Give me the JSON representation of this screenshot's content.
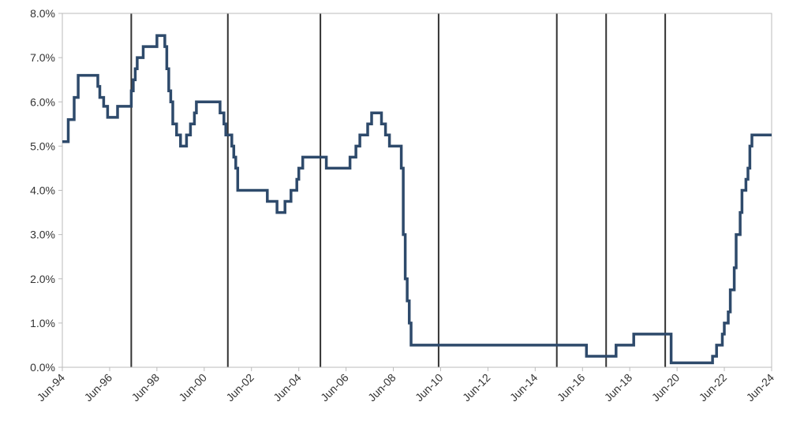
{
  "chart_data": {
    "type": "line",
    "title": "",
    "xlabel": "",
    "ylabel": "",
    "x_range": [
      "1994-06-01",
      "2024-06-01"
    ],
    "ylim": [
      0,
      8
    ],
    "y_ticks": [
      {
        "value": 0,
        "label": "0.0%"
      },
      {
        "value": 1,
        "label": "1.0%"
      },
      {
        "value": 2,
        "label": "2.0%"
      },
      {
        "value": 3,
        "label": "3.0%"
      },
      {
        "value": 4,
        "label": "4.0%"
      },
      {
        "value": 5,
        "label": "5.0%"
      },
      {
        "value": 6,
        "label": "6.0%"
      },
      {
        "value": 7,
        "label": "7.0%"
      },
      {
        "value": 8,
        "label": "8.0%"
      }
    ],
    "x_ticks": [
      {
        "date": "1994-06-01",
        "label": "Jun-94"
      },
      {
        "date": "1996-06-01",
        "label": "Jun-96"
      },
      {
        "date": "1998-06-01",
        "label": "Jun-98"
      },
      {
        "date": "2000-06-01",
        "label": "Jun-00"
      },
      {
        "date": "2002-06-01",
        "label": "Jun-02"
      },
      {
        "date": "2004-06-01",
        "label": "Jun-04"
      },
      {
        "date": "2006-06-01",
        "label": "Jun-06"
      },
      {
        "date": "2008-06-01",
        "label": "Jun-08"
      },
      {
        "date": "2010-06-01",
        "label": "Jun-10"
      },
      {
        "date": "2012-06-01",
        "label": "Jun-12"
      },
      {
        "date": "2014-06-01",
        "label": "Jun-14"
      },
      {
        "date": "2016-06-01",
        "label": "Jun-16"
      },
      {
        "date": "2018-06-01",
        "label": "Jun-18"
      },
      {
        "date": "2020-06-01",
        "label": "Jun-20"
      },
      {
        "date": "2022-06-01",
        "label": "Jun-22"
      },
      {
        "date": "2024-06-01",
        "label": "Jun-24"
      }
    ],
    "vertical_markers": [
      "1997-05-01",
      "2001-06-01",
      "2005-05-01",
      "2010-05-01",
      "2015-05-01",
      "2017-06-01",
      "2019-12-01"
    ],
    "grid": false,
    "colors": {
      "line": "#2e4a6b",
      "markers": "#333333",
      "axis": "#bbbbbb"
    },
    "series": [
      {
        "step": true,
        "points": [
          [
            "1994-06-01",
            5.1
          ],
          [
            "1994-09-01",
            5.6
          ],
          [
            "1994-12-01",
            6.1
          ],
          [
            "1995-02-01",
            6.6
          ],
          [
            "1995-12-01",
            6.35
          ],
          [
            "1996-01-01",
            6.1
          ],
          [
            "1996-03-01",
            5.9
          ],
          [
            "1996-05-01",
            5.65
          ],
          [
            "1996-10-01",
            5.9
          ],
          [
            "1997-05-01",
            6.25
          ],
          [
            "1997-06-01",
            6.5
          ],
          [
            "1997-07-01",
            6.75
          ],
          [
            "1997-08-01",
            7.0
          ],
          [
            "1997-11-01",
            7.25
          ],
          [
            "1998-06-01",
            7.5
          ],
          [
            "1998-10-01",
            7.25
          ],
          [
            "1998-11-01",
            6.75
          ],
          [
            "1998-12-01",
            6.25
          ],
          [
            "1999-01-01",
            6.0
          ],
          [
            "1999-02-01",
            5.5
          ],
          [
            "1999-04-01",
            5.25
          ],
          [
            "1999-06-01",
            5.0
          ],
          [
            "1999-09-01",
            5.25
          ],
          [
            "1999-11-01",
            5.5
          ],
          [
            "2000-01-01",
            5.75
          ],
          [
            "2000-02-01",
            6.0
          ],
          [
            "2001-02-01",
            5.75
          ],
          [
            "2001-04-01",
            5.5
          ],
          [
            "2001-05-01",
            5.25
          ],
          [
            "2001-08-01",
            5.0
          ],
          [
            "2001-09-01",
            4.75
          ],
          [
            "2001-10-01",
            4.5
          ],
          [
            "2001-11-01",
            4.0
          ],
          [
            "2003-02-01",
            3.75
          ],
          [
            "2003-07-01",
            3.5
          ],
          [
            "2003-11-01",
            3.75
          ],
          [
            "2004-02-01",
            4.0
          ],
          [
            "2004-05-01",
            4.25
          ],
          [
            "2004-06-01",
            4.5
          ],
          [
            "2004-08-01",
            4.75
          ],
          [
            "2005-08-01",
            4.5
          ],
          [
            "2006-08-01",
            4.75
          ],
          [
            "2006-11-01",
            5.0
          ],
          [
            "2007-01-01",
            5.25
          ],
          [
            "2007-05-01",
            5.5
          ],
          [
            "2007-07-01",
            5.75
          ],
          [
            "2007-12-01",
            5.5
          ],
          [
            "2008-02-01",
            5.25
          ],
          [
            "2008-04-01",
            5.0
          ],
          [
            "2008-10-01",
            4.5
          ],
          [
            "2008-11-01",
            3.0
          ],
          [
            "2008-12-01",
            2.0
          ],
          [
            "2009-01-01",
            1.5
          ],
          [
            "2009-02-01",
            1.0
          ],
          [
            "2009-03-01",
            0.5
          ],
          [
            "2016-08-01",
            0.25
          ],
          [
            "2017-11-01",
            0.5
          ],
          [
            "2018-08-01",
            0.75
          ],
          [
            "2020-03-01",
            0.1
          ],
          [
            "2021-12-01",
            0.25
          ],
          [
            "2022-02-01",
            0.5
          ],
          [
            "2022-05-01",
            0.75
          ],
          [
            "2022-06-01",
            1.0
          ],
          [
            "2022-08-01",
            1.25
          ],
          [
            "2022-09-01",
            1.75
          ],
          [
            "2022-11-01",
            2.25
          ],
          [
            "2022-12-01",
            3.0
          ],
          [
            "2023-02-01",
            3.5
          ],
          [
            "2023-03-01",
            4.0
          ],
          [
            "2023-05-01",
            4.25
          ],
          [
            "2023-06-01",
            4.5
          ],
          [
            "2023-07-01",
            5.0
          ],
          [
            "2023-08-01",
            5.25
          ],
          [
            "2024-06-01",
            5.25
          ]
        ]
      }
    ]
  }
}
